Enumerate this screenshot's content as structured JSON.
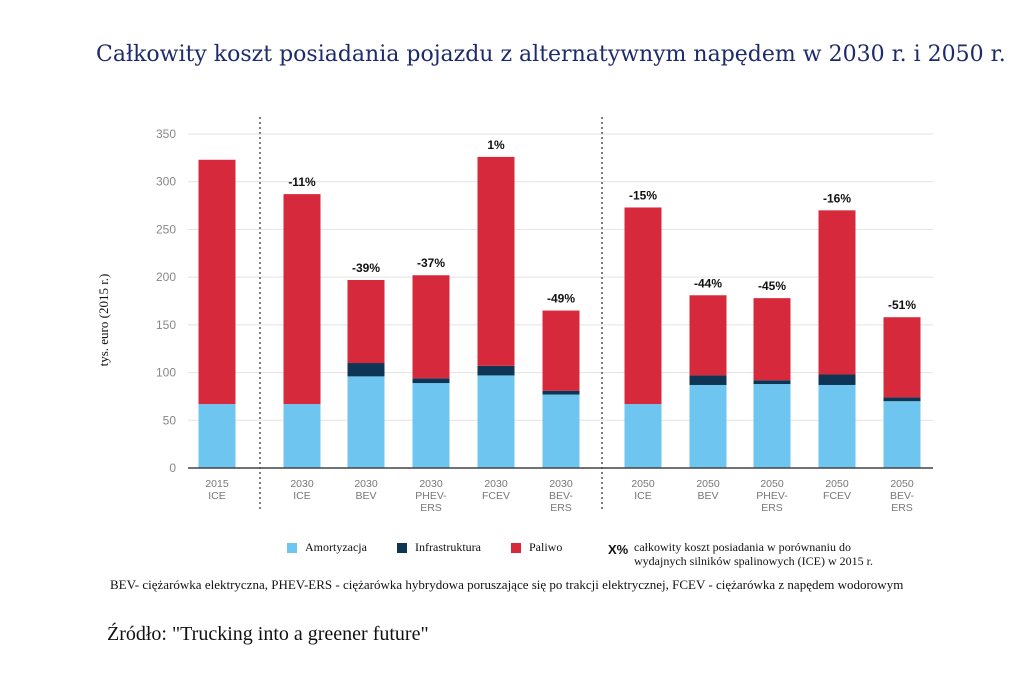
{
  "title": "Całkowity koszt posiadania pojazdu z alternatywnym napędem w 2030 r. i 2050 r.",
  "footnote": "BEV- ciężarówka elektryczna, PHEV-ERS - ciężarówka hybrydowa poruszające się po trakcji elektrycznej, FCEV - ciężarówka z napędem wodorowym",
  "source": "Źródło: \"Trucking into a greener future\"",
  "pct_note": {
    "symbol": "X%",
    "line1": "całkowity koszt posiadania w porównaniu do",
    "line2": "wydajnych silników spalinowych (ICE) w 2015 r."
  },
  "chart_data": {
    "type": "bar",
    "stacked": true,
    "ylabel": "tys. euro (2015 r.)",
    "ylim": [
      0,
      350
    ],
    "yticks": [
      0,
      50,
      100,
      150,
      200,
      250,
      300,
      350
    ],
    "grid": true,
    "legend_position": "bottom",
    "categories": [
      [
        "2015",
        "ICE"
      ],
      [
        "2030",
        "ICE"
      ],
      [
        "2030",
        "BEV"
      ],
      [
        "2030",
        "PHEV-",
        "ERS"
      ],
      [
        "2030",
        "FCEV"
      ],
      [
        "2030",
        "BEV-",
        "ERS"
      ],
      [
        "2050",
        "ICE"
      ],
      [
        "2050",
        "BEV"
      ],
      [
        "2050",
        "PHEV-",
        "ERS"
      ],
      [
        "2050",
        "FCEV"
      ],
      [
        "2050",
        "BEV-",
        "ERS"
      ]
    ],
    "series": [
      {
        "name": "Amortyzacja",
        "color": "#6ec6f0",
        "values": [
          67,
          67,
          96,
          89,
          97,
          77,
          67,
          87,
          88,
          87,
          70
        ]
      },
      {
        "name": "Infrastruktura",
        "color": "#0e3553",
        "values": [
          0,
          0,
          14,
          5,
          10,
          4,
          0,
          10,
          4,
          11,
          4
        ]
      },
      {
        "name": "Paliwo",
        "color": "#d62a3c",
        "values": [
          256,
          220,
          87,
          108,
          219,
          84,
          206,
          84,
          86,
          172,
          84
        ]
      }
    ],
    "bar_labels": [
      "",
      "-11%",
      "-39%",
      "-37%",
      "1%",
      "-49%",
      "-15%",
      "-44%",
      "-45%",
      "-16%",
      "-51%"
    ]
  }
}
